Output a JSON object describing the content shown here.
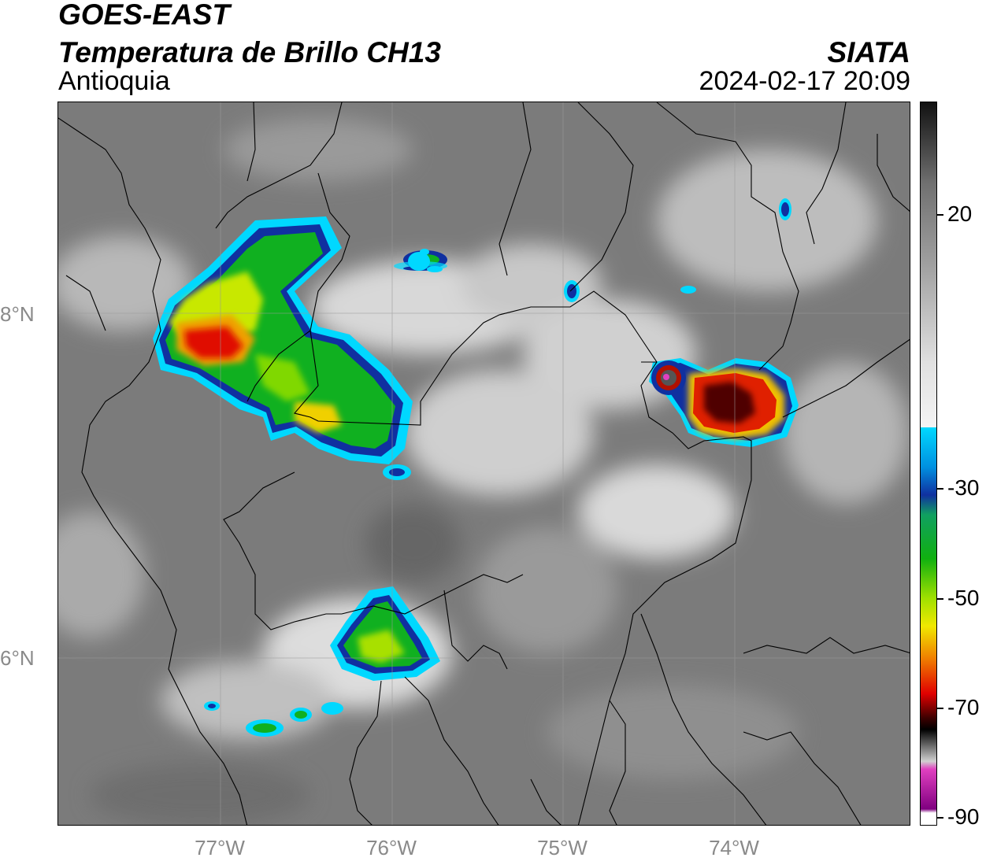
{
  "header": {
    "satellite": "GOES-EAST",
    "product": "Temperatura de Brillo CH13",
    "region": "Antioquia",
    "organization": "SIATA",
    "datetime": "2024-02-17 20:09"
  },
  "map": {
    "lat_labels": [
      "8°N",
      "6°N"
    ],
    "lon_labels": [
      "77°W",
      "76°W",
      "75°W",
      "74°W"
    ],
    "grid": true
  },
  "colorbar": {
    "tick_labels": [
      "20",
      "-30",
      "-50",
      "-70",
      "-90"
    ],
    "colors": {
      "warm_gray_top": "#1a1a1a",
      "warm_gray_mid": "#8c8c8c",
      "white": "#f2f2f2",
      "cyan": "#00d8ff",
      "blue": "#102080",
      "green": "#10b010",
      "yellow": "#f0e800",
      "orange": "#f08000",
      "red": "#e00000",
      "dark_red": "#400000",
      "black": "#000000",
      "magenta": "#e040c0",
      "purple": "#800080"
    }
  }
}
